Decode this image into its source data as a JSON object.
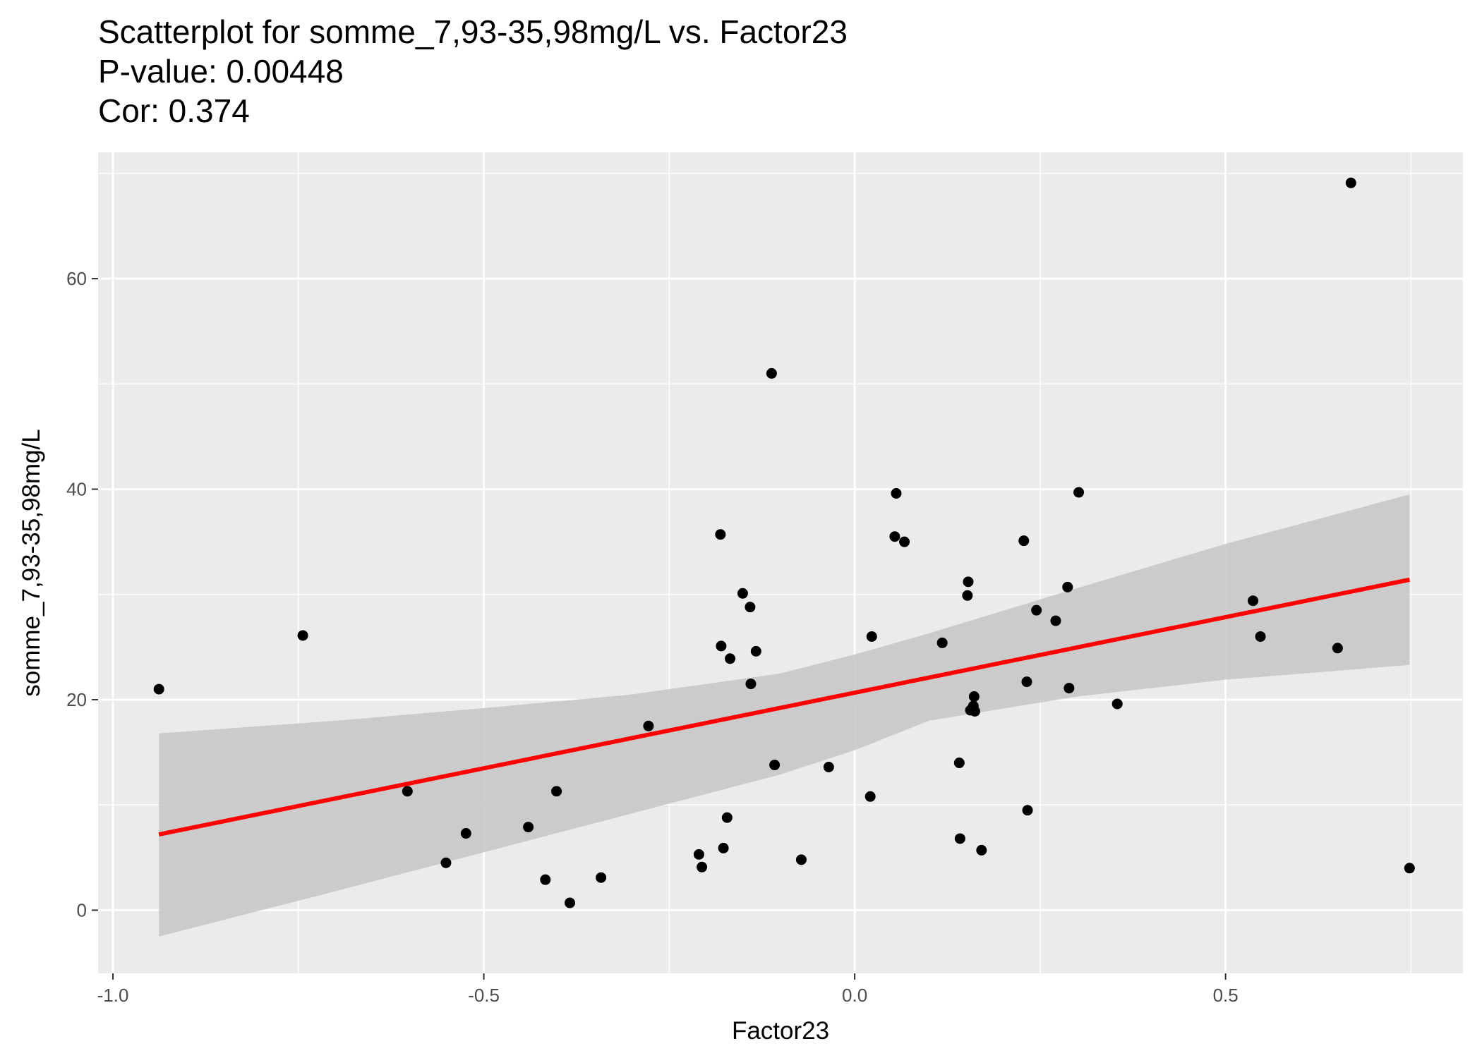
{
  "chart_data": {
    "type": "scatter",
    "title_lines": [
      "Scatterplot for somme_7,93-35,98mg/L vs. Factor23",
      "P-value: 0.00448",
      "Cor: 0.374"
    ],
    "xlabel": "Factor23",
    "ylabel": "somme_7,93-35,98mg/L",
    "xlim": [
      -1.02,
      0.82
    ],
    "ylim": [
      -6,
      72
    ],
    "x_ticks": [
      -1.0,
      -0.5,
      0.0,
      0.5
    ],
    "x_tick_labels": [
      "-1.0",
      "-0.5",
      "0.0",
      "0.5"
    ],
    "y_ticks": [
      0,
      20,
      40,
      60
    ],
    "y_tick_labels": [
      "0",
      "20",
      "40",
      "60"
    ],
    "grid": true,
    "legend": "none",
    "colors": {
      "panel": "#ebebeb",
      "grid": "#ffffff",
      "points": "#000000",
      "fit_line": "#ff0000",
      "band": "#c6c6c6"
    },
    "points": [
      {
        "x": -0.938,
        "y": 21.0
      },
      {
        "x": -0.744,
        "y": 26.1
      },
      {
        "x": -0.603,
        "y": 11.3
      },
      {
        "x": -0.551,
        "y": 4.5
      },
      {
        "x": -0.524,
        "y": 7.3
      },
      {
        "x": -0.44,
        "y": 7.9
      },
      {
        "x": -0.417,
        "y": 2.9
      },
      {
        "x": -0.402,
        "y": 11.3
      },
      {
        "x": -0.384,
        "y": 0.7
      },
      {
        "x": -0.342,
        "y": 3.1
      },
      {
        "x": -0.278,
        "y": 17.5
      },
      {
        "x": -0.21,
        "y": 5.3
      },
      {
        "x": -0.206,
        "y": 4.1
      },
      {
        "x": -0.181,
        "y": 35.7
      },
      {
        "x": -0.18,
        "y": 25.1
      },
      {
        "x": -0.177,
        "y": 5.9
      },
      {
        "x": -0.172,
        "y": 8.8
      },
      {
        "x": -0.168,
        "y": 23.9
      },
      {
        "x": -0.151,
        "y": 30.1
      },
      {
        "x": -0.141,
        "y": 28.8
      },
      {
        "x": -0.14,
        "y": 21.5
      },
      {
        "x": -0.133,
        "y": 24.6
      },
      {
        "x": -0.112,
        "y": 51.0
      },
      {
        "x": -0.108,
        "y": 13.8
      },
      {
        "x": -0.072,
        "y": 4.8
      },
      {
        "x": -0.035,
        "y": 13.6
      },
      {
        "x": 0.021,
        "y": 10.8
      },
      {
        "x": 0.023,
        "y": 26.0
      },
      {
        "x": 0.054,
        "y": 35.5
      },
      {
        "x": 0.056,
        "y": 39.6
      },
      {
        "x": 0.067,
        "y": 35.0
      },
      {
        "x": 0.118,
        "y": 25.4
      },
      {
        "x": 0.141,
        "y": 14.0
      },
      {
        "x": 0.142,
        "y": 6.8
      },
      {
        "x": 0.152,
        "y": 29.9
      },
      {
        "x": 0.153,
        "y": 31.2
      },
      {
        "x": 0.156,
        "y": 19.0
      },
      {
        "x": 0.16,
        "y": 19.4
      },
      {
        "x": 0.161,
        "y": 20.3
      },
      {
        "x": 0.162,
        "y": 18.9
      },
      {
        "x": 0.171,
        "y": 5.7
      },
      {
        "x": 0.228,
        "y": 35.1
      },
      {
        "x": 0.232,
        "y": 21.7
      },
      {
        "x": 0.233,
        "y": 9.5
      },
      {
        "x": 0.245,
        "y": 28.5
      },
      {
        "x": 0.271,
        "y": 27.5
      },
      {
        "x": 0.287,
        "y": 30.7
      },
      {
        "x": 0.289,
        "y": 21.1
      },
      {
        "x": 0.302,
        "y": 39.7
      },
      {
        "x": 0.354,
        "y": 19.6
      },
      {
        "x": 0.537,
        "y": 29.4
      },
      {
        "x": 0.547,
        "y": 26.0
      },
      {
        "x": 0.651,
        "y": 24.9
      },
      {
        "x": 0.669,
        "y": 69.1
      },
      {
        "x": 0.748,
        "y": 4.0
      }
    ],
    "fit_line": {
      "x": [
        -0.938,
        0.748
      ],
      "y": [
        7.2,
        31.4
      ]
    },
    "confidence_band": {
      "x": [
        -0.938,
        -0.7,
        -0.5,
        -0.3,
        -0.1,
        0.0,
        0.1,
        0.3,
        0.5,
        0.748
      ],
      "upper": [
        16.8,
        18.0,
        19.2,
        20.5,
        22.5,
        24.3,
        26.3,
        30.6,
        34.8,
        39.5
      ],
      "lower": [
        -2.5,
        1.8,
        5.5,
        9.2,
        12.9,
        15.2,
        18.0,
        20.3,
        21.9,
        23.3
      ]
    }
  }
}
